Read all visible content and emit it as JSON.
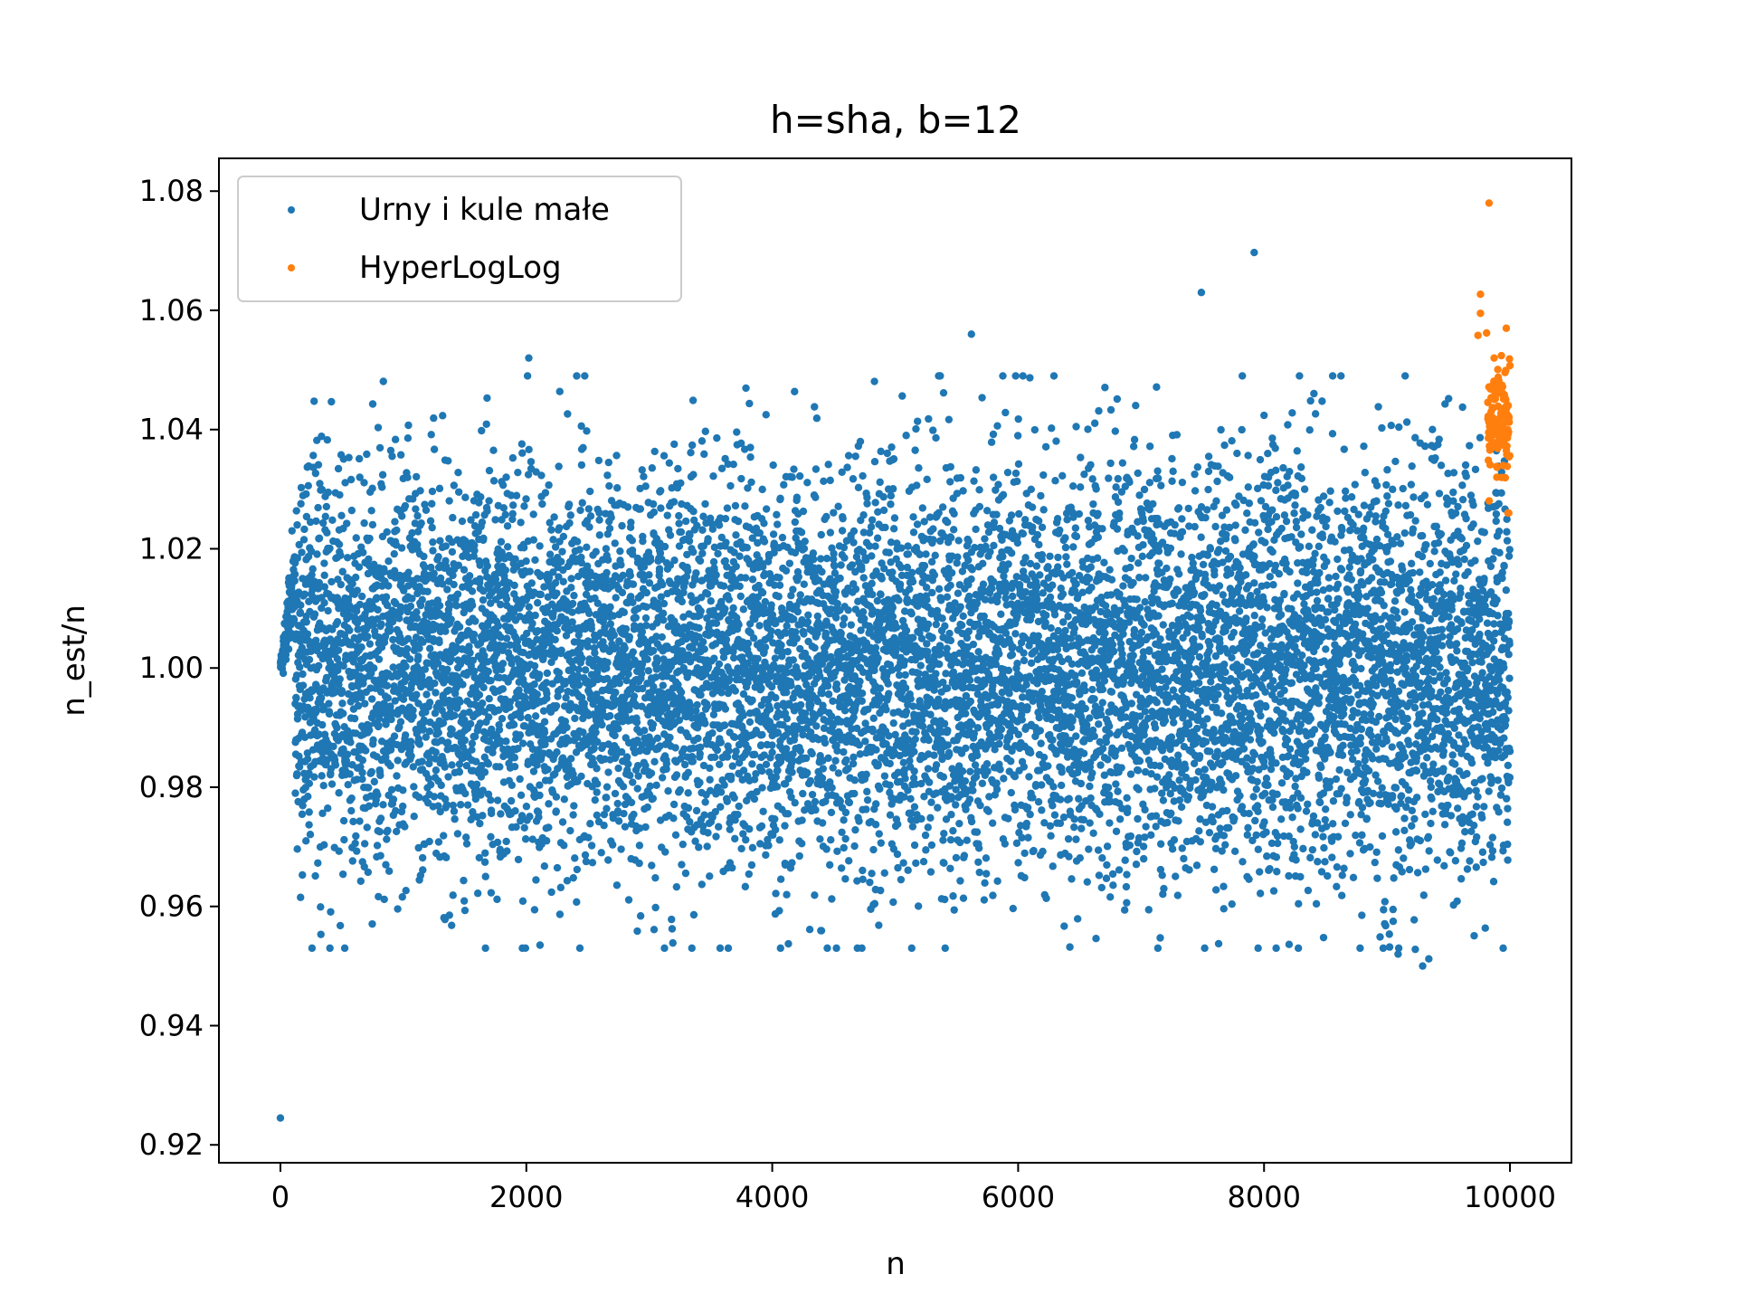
{
  "chart_data": {
    "type": "scatter",
    "title": "h=sha, b=12",
    "xlabel": "n",
    "ylabel": "n_est/n",
    "xlim": [
      -500,
      10500
    ],
    "ylim": [
      0.917,
      1.0855
    ],
    "xticks": [
      0,
      2000,
      4000,
      6000,
      8000,
      10000
    ],
    "xtick_labels": [
      "0",
      "2000",
      "4000",
      "6000",
      "8000",
      "10000"
    ],
    "yticks": [
      0.92,
      0.94,
      0.96,
      0.98,
      1.0,
      1.02,
      1.04,
      1.06,
      1.08
    ],
    "ytick_labels": [
      "0.92",
      "0.94",
      "0.96",
      "0.98",
      "1.00",
      "1.02",
      "1.04",
      "1.06",
      "1.08"
    ],
    "grid": false,
    "legend_position": "upper-left",
    "series": [
      {
        "name": "Urny i kule małe",
        "color": "#1f77b4",
        "n_range": [
          1,
          10000
        ],
        "approx_stddev": 0.0163,
        "sampled_points": 9960,
        "notable_points": [
          {
            "x": 0,
            "y": 0.9245
          },
          {
            "x": 2020,
            "y": 1.052
          },
          {
            "x": 5620,
            "y": 1.056
          },
          {
            "x": 7490,
            "y": 1.063
          },
          {
            "x": 7920,
            "y": 1.0697
          },
          {
            "x": 9290,
            "y": 0.95
          },
          {
            "x": 9340,
            "y": 0.9512
          },
          {
            "x": 9090,
            "y": 0.952
          },
          {
            "x": 9230,
            "y": 0.9528
          }
        ]
      },
      {
        "name": "HyperLogLog",
        "color": "#ff7f0e",
        "n_range": [
          9740,
          10000
        ],
        "sampled_points": 130,
        "notable_points": [
          {
            "x": 9830,
            "y": 1.078
          },
          {
            "x": 9760,
            "y": 1.0627
          },
          {
            "x": 9760,
            "y": 1.0595
          },
          {
            "x": 9740,
            "y": 1.0558
          },
          {
            "x": 9810,
            "y": 1.0562
          },
          {
            "x": 9970,
            "y": 1.057
          },
          {
            "x": 9930,
            "y": 1.0524
          },
          {
            "x": 9990,
            "y": 1.026
          }
        ]
      }
    ]
  }
}
